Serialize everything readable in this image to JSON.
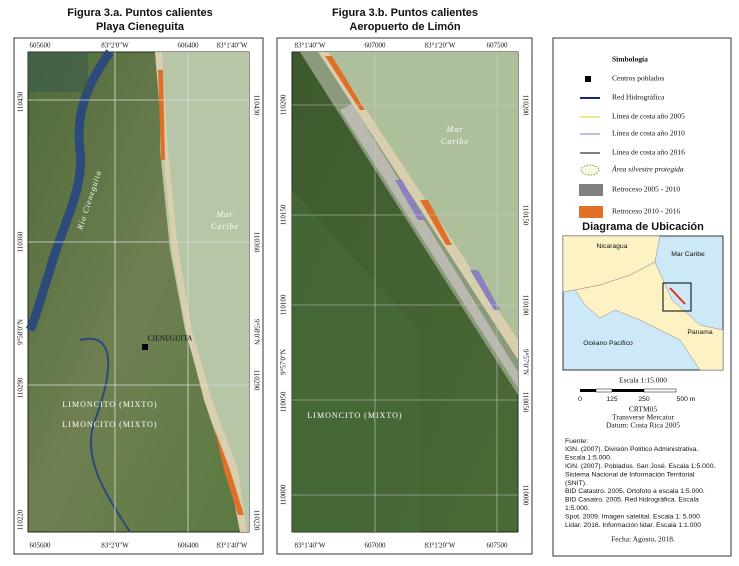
{
  "panels": [
    {
      "title": [
        "Figura 3.a. Puntos calientes",
        "Playa Cieneguita"
      ],
      "top_labels": [
        "605600",
        "83°2'0\"W",
        "606400",
        "83°1'40\"W"
      ],
      "bottom_labels": [
        "605600",
        "83°2'0\"W",
        "606400",
        "83°1'40\"W"
      ],
      "left_labels": [
        "110430",
        "110360",
        "9°58'0\"N",
        "110290",
        "110220"
      ],
      "right_labels": [
        "110430",
        "110360",
        "9°58'0\"N",
        "110290",
        "110220"
      ],
      "map_labels": [
        "Río Cieneguita",
        "Mar",
        "Caribe",
        "CIENEGUITA",
        "LIMONCITO (MIXTO)",
        "LIMONCITO (MIXTO)"
      ]
    },
    {
      "title": [
        "Figura 3.b. Puntos calientes",
        "Aeropuerto de Limón"
      ],
      "top_labels": [
        "83°1'40\"W",
        "607000",
        "83°1'20\"W",
        "607500"
      ],
      "bottom_labels": [
        "83°1'40\"W",
        "607000",
        "83°1'20\"W",
        "607500"
      ],
      "left_labels": [
        "110200",
        "110150",
        "110100",
        "9°57'0\"N",
        "110050",
        "110000"
      ],
      "right_labels": [
        "110200",
        "110150",
        "110100",
        "9°57'0\"N",
        "110050",
        "110000"
      ],
      "map_labels": [
        "Mar",
        "Caribe",
        "LIMONCITO (MIXTO)"
      ]
    }
  ],
  "legend": {
    "title": "Simbología",
    "items": [
      "Centros poblados",
      "Red Hidrográfica",
      "Línea de costa año 2005",
      "Línea de costa año 2010",
      "Línea de costa  año 2016",
      "Área silvestre protegida",
      "Retroceso 2005 - 2010",
      "Retroceso 2010 - 2016"
    ]
  },
  "location": {
    "title": "Diagrama de Ubicación",
    "labels": [
      "Nicaragua",
      "Mar Caribe",
      "Océano Pacifico",
      "Panama"
    ]
  },
  "scale": {
    "text": "Escala 1:15.000",
    "ticks": [
      "0",
      "125",
      "250",
      "500 m"
    ]
  },
  "projection": [
    "CRTM05",
    "Transverse Mercator",
    "Datum: Costa Rica 2005"
  ],
  "sources": [
    "Fuente:",
    "IGN. (2007). División Político Administrativa.",
    "Escala 1:5.000.",
    "IGN. (2007). Poblados. San José. Escala 1:5.000.",
    "Sistema Nacional de Información Territorial",
    "(SNIT).",
    "BID Catastro. 2005. Ortofoto a escala 1:5.000.",
    "BID Casatro. 2005. Red hidrográfica. Escala",
    "1:5.000.",
    "Spot. 2009. Imagen satelital. Escala 1: 5.000",
    "Lidar. 2016. Información lidar. Escala 1:1.000"
  ],
  "date": "Fecha: Agosto, 2018."
}
